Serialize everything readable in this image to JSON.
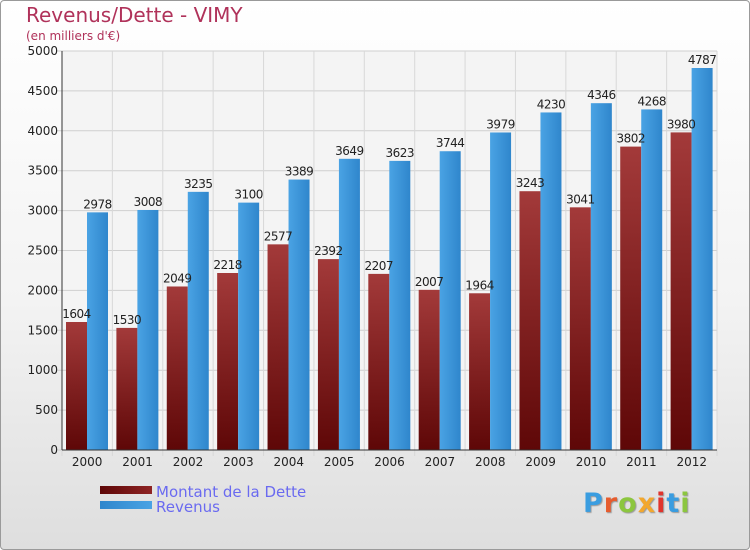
{
  "title": "Revenus/Dette - VIMY",
  "subtitle": "(en milliers d'€)",
  "brand": {
    "letters": [
      "P",
      "r",
      "o",
      "x",
      "i",
      "t",
      "i"
    ],
    "colors": [
      "#3a9de0",
      "#e65c2e",
      "#8cc63f",
      "#f2a72e",
      "#e0342c",
      "#3a9de0",
      "#8cc63f"
    ]
  },
  "colors": {
    "dette": "#7a1a1a",
    "revenus": "#3d99dc",
    "title": "#b0325a",
    "legend_text": "#6a6af0"
  },
  "legend": [
    {
      "label": "Montant de la Dette",
      "color": "#6b0d0d"
    },
    {
      "label": "Revenus",
      "color": "#3d99dc"
    }
  ],
  "chart_data": {
    "type": "bar",
    "title": "Revenus/Dette - VIMY",
    "subtitle": "(en milliers d'€)",
    "categories": [
      "2000",
      "2001",
      "2002",
      "2003",
      "2004",
      "2005",
      "2006",
      "2007",
      "2008",
      "2009",
      "2010",
      "2011",
      "2012"
    ],
    "series": [
      {
        "name": "Montant de la Dette",
        "values": [
          1604,
          1530,
          2049,
          2218,
          2577,
          2392,
          2207,
          2007,
          1964,
          3243,
          3041,
          3802,
          3980
        ],
        "labels": [
          "1604",
          "1530",
          "2049",
          "2218",
          "2577",
          "2392",
          "2207",
          "2007",
          "1964",
          "3243",
          "3041",
          "3802",
          "3980"
        ]
      },
      {
        "name": "Revenus",
        "values": [
          2978,
          3008,
          3235,
          3100,
          3389,
          3649,
          3623,
          3744,
          3979,
          4230,
          4346,
          4268,
          4787
        ],
        "labels": [
          "2978",
          "3008",
          "3235",
          "3100",
          "3389",
          "3649",
          "3623",
          "3744",
          "3979",
          "4230",
          "4346",
          "4268",
          "4787"
        ]
      }
    ],
    "yticks": [
      "0",
      "500",
      "1000",
      "1500",
      "2000",
      "2500",
      "3000",
      "3500",
      "4000",
      "4500",
      "5000"
    ],
    "ylim": [
      0,
      5000
    ],
    "grid": true,
    "legend_position": "bottom-left"
  }
}
